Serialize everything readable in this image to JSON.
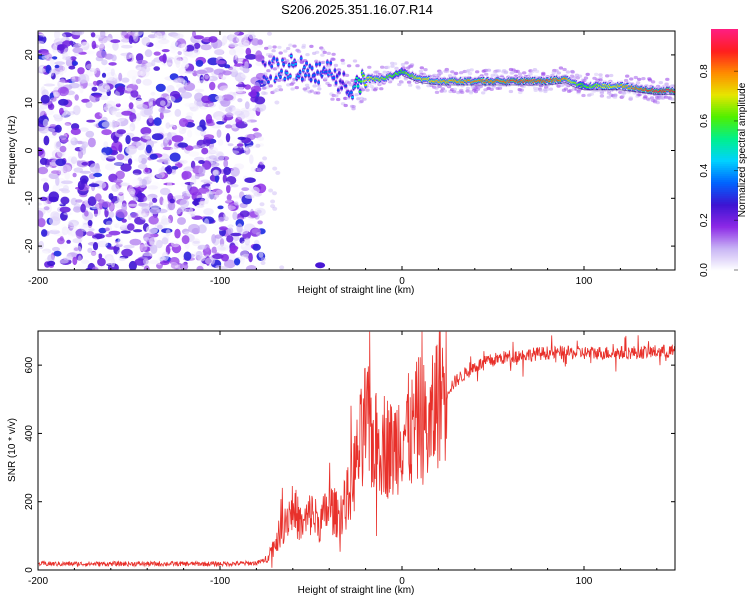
{
  "title": "S206.2025.351.16.07.R14",
  "chart_data": [
    {
      "type": "heatmap",
      "xlabel": "Height of straight line (km)",
      "ylabel": "Frequency (Hz)",
      "xlim": [
        -200,
        150
      ],
      "ylim": [
        -25,
        25
      ],
      "xticks": [
        -200,
        -100,
        0,
        100
      ],
      "yticks": [
        -20,
        -10,
        0,
        10,
        20
      ],
      "colorbar": {
        "label": "Normalized spectral amplitude",
        "range": [
          0.0,
          0.97
        ],
        "ticks": [
          0.0,
          0.2,
          0.4,
          0.6,
          0.8
        ],
        "colors": [
          "#ffffff",
          "#c8b4f5",
          "#8c28e6",
          "#3c14d2",
          "#0064ff",
          "#00d2ff",
          "#00f08c",
          "#50f000",
          "#e6e600",
          "#ff8c00",
          "#ff1e1e",
          "#ff1e82"
        ]
      },
      "noise_region": {
        "x_range": [
          -200,
          -77
        ],
        "y_range": [
          -25,
          25
        ],
        "amplitude_range": [
          0.0,
          0.3
        ]
      },
      "signal_ridge": {
        "x": [
          -77,
          -70,
          -60,
          -50,
          -40,
          -35,
          -30,
          -25,
          -20,
          -10,
          0,
          10,
          20,
          40,
          60,
          80,
          90,
          95,
          100,
          120,
          140,
          150
        ],
        "frequency": [
          16.5,
          17,
          17.5,
          17,
          16,
          15,
          13,
          14,
          15,
          15,
          16.5,
          15,
          14.5,
          14.5,
          14.5,
          14.5,
          15,
          14,
          13.5,
          13.5,
          12.5,
          12.5
        ],
        "amplitude": [
          0.3,
          0.35,
          0.4,
          0.35,
          0.35,
          0.3,
          0.3,
          0.5,
          0.7,
          0.65,
          0.6,
          0.7,
          0.75,
          0.8,
          0.85,
          0.85,
          0.8,
          0.65,
          0.6,
          0.75,
          0.9,
          0.9
        ]
      }
    },
    {
      "type": "line",
      "xlabel": "Height of straight line (km)",
      "ylabel": "SNR (10 * v/v)",
      "xlim": [
        -200,
        150
      ],
      "ylim": [
        0,
        700
      ],
      "xticks": [
        -200,
        -100,
        0,
        100
      ],
      "yticks": [
        0,
        200,
        400,
        600
      ],
      "series": [
        {
          "name": "SNR",
          "color": "#e8302a",
          "x": [
            -200,
            -150,
            -100,
            -80,
            -75,
            -70,
            -65,
            -60,
            -55,
            -50,
            -45,
            -40,
            -35,
            -30,
            -25,
            -20,
            -15,
            -10,
            -5,
            0,
            5,
            10,
            15,
            20,
            30,
            40,
            50,
            60,
            80,
            100,
            120,
            150
          ],
          "y": [
            18,
            18,
            18,
            20,
            30,
            70,
            130,
            180,
            120,
            160,
            130,
            180,
            150,
            200,
            300,
            420,
            350,
            360,
            330,
            400,
            380,
            430,
            380,
            500,
            560,
            600,
            620,
            630,
            640,
            640,
            640,
            645
          ]
        }
      ]
    }
  ]
}
